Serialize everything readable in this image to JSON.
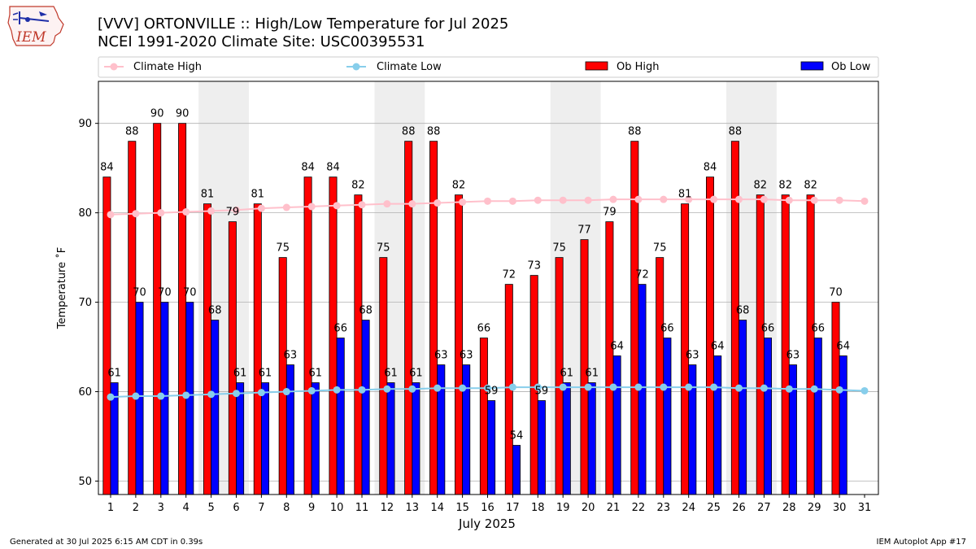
{
  "chart_data": {
    "type": "bar",
    "title_line1": "[VVV] ORTONVILLE :: High/Low Temperature for Jul 2025",
    "title_line2": "NCEI 1991-2020 Climate Site: USC00395531",
    "xlabel": "July 2025",
    "ylabel": "Temperature ˚F",
    "ylim": [
      48.5,
      94.7
    ],
    "yticks": [
      50,
      60,
      70,
      80,
      90
    ],
    "grid": "horizontal",
    "legend_position": "top",
    "categories": [
      "1",
      "2",
      "3",
      "4",
      "5",
      "6",
      "7",
      "8",
      "9",
      "10",
      "11",
      "12",
      "13",
      "14",
      "15",
      "16",
      "17",
      "18",
      "19",
      "20",
      "21",
      "22",
      "23",
      "24",
      "25",
      "26",
      "27",
      "28",
      "29",
      "30",
      "31"
    ],
    "weekend_days": [
      5,
      6,
      12,
      13,
      19,
      20,
      26,
      27
    ],
    "series": [
      {
        "name": "Ob High",
        "kind": "bar",
        "color": "#ff0000",
        "values": [
          84,
          88,
          90,
          90,
          81,
          79,
          81,
          75,
          84,
          84,
          82,
          75,
          88,
          88,
          82,
          66,
          72,
          73,
          75,
          77,
          79,
          88,
          75,
          81,
          84,
          88,
          82,
          82,
          82,
          70,
          null
        ]
      },
      {
        "name": "Ob Low",
        "kind": "bar",
        "color": "#0000ff",
        "values": [
          61,
          70,
          70,
          70,
          68,
          61,
          61,
          63,
          61,
          66,
          68,
          61,
          61,
          63,
          63,
          59,
          54,
          59,
          61,
          61,
          64,
          72,
          66,
          63,
          64,
          68,
          66,
          63,
          66,
          64,
          null
        ]
      },
      {
        "name": "Climate High",
        "kind": "line",
        "color": "#ffc0cb",
        "values": [
          79.8,
          79.9,
          80.0,
          80.1,
          80.2,
          80.3,
          80.5,
          80.6,
          80.7,
          80.8,
          80.9,
          81.0,
          81.0,
          81.1,
          81.2,
          81.3,
          81.3,
          81.4,
          81.4,
          81.4,
          81.5,
          81.5,
          81.5,
          81.5,
          81.5,
          81.5,
          81.5,
          81.4,
          81.4,
          81.4,
          81.3
        ]
      },
      {
        "name": "Climate Low",
        "kind": "line",
        "color": "#87ceeb",
        "values": [
          59.4,
          59.5,
          59.5,
          59.6,
          59.7,
          59.8,
          59.9,
          60.0,
          60.1,
          60.2,
          60.2,
          60.3,
          60.3,
          60.4,
          60.4,
          60.4,
          60.5,
          60.5,
          60.5,
          60.5,
          60.5,
          60.5,
          60.5,
          60.5,
          60.5,
          60.4,
          60.4,
          60.3,
          60.3,
          60.2,
          60.1
        ]
      }
    ],
    "legend": [
      "Climate High",
      "Climate Low",
      "Ob High",
      "Ob Low"
    ]
  },
  "logo_text": "IEM",
  "footer": {
    "left": "Generated at 30 Jul 2025 6:15 AM CDT in 0.39s",
    "right": "IEM Autoplot App #17"
  }
}
